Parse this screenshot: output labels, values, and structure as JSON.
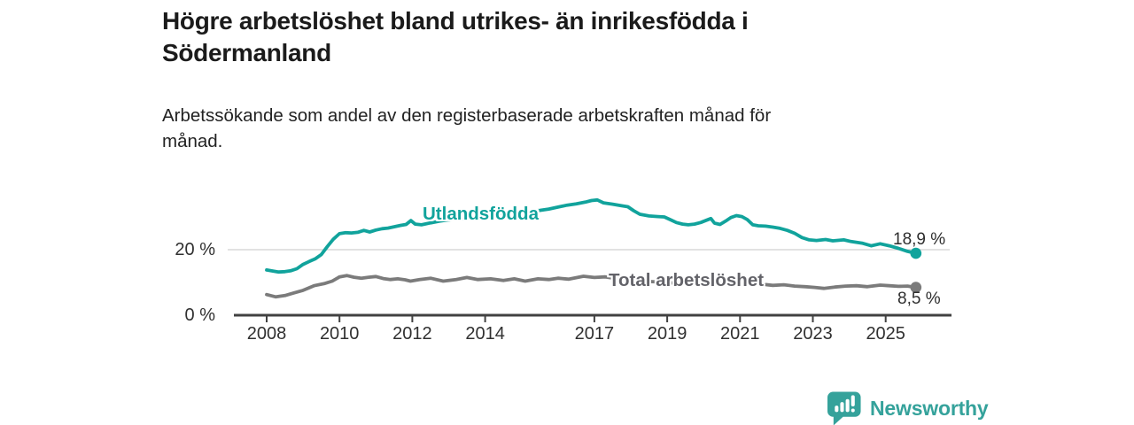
{
  "title": {
    "lines": [
      "Högre arbetslöshet bland utrikes- än inrikesfödda i",
      "Södermanland"
    ],
    "full": "Högre arbetslöshet bland utrikes- än inrikesfödda i Södermanland"
  },
  "subtitle": {
    "lines": [
      "Arbetssökande som andel av den registerbaserade arbetskraften månad för",
      "månad."
    ],
    "full": "Arbetssökande som andel av den registerbaserade arbetskraften månad för månad."
  },
  "branding": {
    "name": "Newsworthy",
    "logo_icon": "bar-chart-exclamation-bubble"
  },
  "colors": {
    "accent_teal": "#11a39c",
    "series_gray": "#7b7b7b",
    "label_gray": "#636369",
    "logo_teal": "#35a29b",
    "grid": "#d8d8d8",
    "axis": "#414141",
    "title_text": "#1b1b1b",
    "annotation_text": "#2e2e2e"
  },
  "chart_data": {
    "type": "line",
    "title": "Högre arbetslöshet bland utrikes- än inrikesfödda i Södermanland",
    "subtitle": "Arbetssökande som andel av den registerbaserade arbetskraften månad för månad.",
    "unit": "%",
    "x_axis": {
      "tick_years": [
        2008,
        2010,
        2012,
        2014,
        2017,
        2019,
        2021,
        2023,
        2025
      ],
      "range": [
        2008,
        2025.83
      ]
    },
    "y_axis": {
      "ticks": [
        {
          "value": 20,
          "label": "20 %"
        },
        {
          "value": 0,
          "label": "0 %"
        }
      ],
      "gridlines": [
        20
      ],
      "range": [
        0,
        38
      ]
    },
    "legend_position": "inline-labels",
    "series": [
      {
        "name": "Utlandsfödda",
        "color": "#11a39c",
        "end_label": "18,9 %",
        "end_value": 18.9,
        "points": [
          [
            2008.0,
            13.8
          ],
          [
            2008.17,
            13.5
          ],
          [
            2008.33,
            13.2
          ],
          [
            2008.5,
            13.3
          ],
          [
            2008.67,
            13.6
          ],
          [
            2008.83,
            14.2
          ],
          [
            2009.0,
            15.5
          ],
          [
            2009.17,
            16.4
          ],
          [
            2009.33,
            17.2
          ],
          [
            2009.5,
            18.5
          ],
          [
            2009.67,
            21.0
          ],
          [
            2009.83,
            23.2
          ],
          [
            2010.0,
            24.9
          ],
          [
            2010.17,
            25.2
          ],
          [
            2010.33,
            25.1
          ],
          [
            2010.5,
            25.3
          ],
          [
            2010.67,
            25.9
          ],
          [
            2010.83,
            25.4
          ],
          [
            2011.0,
            26.0
          ],
          [
            2011.17,
            26.4
          ],
          [
            2011.33,
            26.6
          ],
          [
            2011.5,
            27.0
          ],
          [
            2011.67,
            27.4
          ],
          [
            2011.83,
            27.7
          ],
          [
            2011.96,
            28.9
          ],
          [
            2012.08,
            27.8
          ],
          [
            2012.25,
            27.6
          ],
          [
            2012.5,
            28.2
          ],
          [
            2012.75,
            28.7
          ],
          [
            2013.0,
            29.1
          ],
          [
            2013.25,
            29.4
          ],
          [
            2013.5,
            29.7
          ],
          [
            2013.75,
            30.1
          ],
          [
            2014.0,
            30.5
          ],
          [
            2014.25,
            30.9
          ],
          [
            2014.5,
            31.1
          ],
          [
            2014.75,
            31.4
          ],
          [
            2015.0,
            31.7
          ],
          [
            2015.25,
            31.9
          ],
          [
            2015.5,
            32.0
          ],
          [
            2015.75,
            32.4
          ],
          [
            2016.0,
            33.0
          ],
          [
            2016.25,
            33.6
          ],
          [
            2016.5,
            34.0
          ],
          [
            2016.75,
            34.5
          ],
          [
            2016.92,
            35.0
          ],
          [
            2017.08,
            35.2
          ],
          [
            2017.25,
            34.3
          ],
          [
            2017.5,
            33.9
          ],
          [
            2017.75,
            33.4
          ],
          [
            2017.92,
            33.1
          ],
          [
            2018.08,
            31.9
          ],
          [
            2018.25,
            30.8
          ],
          [
            2018.5,
            30.3
          ],
          [
            2018.75,
            30.1
          ],
          [
            2018.92,
            30.0
          ],
          [
            2019.08,
            29.2
          ],
          [
            2019.25,
            28.3
          ],
          [
            2019.42,
            27.8
          ],
          [
            2019.58,
            27.6
          ],
          [
            2019.75,
            27.8
          ],
          [
            2019.92,
            28.3
          ],
          [
            2020.08,
            29.0
          ],
          [
            2020.2,
            29.5
          ],
          [
            2020.3,
            28.1
          ],
          [
            2020.45,
            27.7
          ],
          [
            2020.6,
            28.7
          ],
          [
            2020.75,
            29.8
          ],
          [
            2020.9,
            30.4
          ],
          [
            2021.05,
            30.1
          ],
          [
            2021.2,
            29.2
          ],
          [
            2021.35,
            27.6
          ],
          [
            2021.5,
            27.3
          ],
          [
            2021.7,
            27.2
          ],
          [
            2021.9,
            26.9
          ],
          [
            2022.1,
            26.5
          ],
          [
            2022.3,
            25.9
          ],
          [
            2022.5,
            25.0
          ],
          [
            2022.7,
            23.7
          ],
          [
            2022.9,
            23.0
          ],
          [
            2023.1,
            22.8
          ],
          [
            2023.35,
            23.1
          ],
          [
            2023.55,
            22.7
          ],
          [
            2023.85,
            23.0
          ],
          [
            2024.05,
            22.5
          ],
          [
            2024.35,
            22.0
          ],
          [
            2024.6,
            21.2
          ],
          [
            2024.85,
            21.8
          ],
          [
            2025.1,
            21.2
          ],
          [
            2025.35,
            20.4
          ],
          [
            2025.6,
            19.5
          ],
          [
            2025.83,
            18.9
          ]
        ]
      },
      {
        "name": "Total arbetslöshet",
        "color": "#7b7b7b",
        "end_label": "8,5 %",
        "end_value": 8.5,
        "points": [
          [
            2008.0,
            6.3
          ],
          [
            2008.25,
            5.6
          ],
          [
            2008.5,
            6.0
          ],
          [
            2008.75,
            6.8
          ],
          [
            2009.0,
            7.6
          ],
          [
            2009.3,
            9.0
          ],
          [
            2009.6,
            9.7
          ],
          [
            2009.8,
            10.4
          ],
          [
            2010.0,
            11.7
          ],
          [
            2010.2,
            12.1
          ],
          [
            2010.4,
            11.6
          ],
          [
            2010.6,
            11.3
          ],
          [
            2010.8,
            11.6
          ],
          [
            2011.0,
            11.8
          ],
          [
            2011.2,
            11.2
          ],
          [
            2011.4,
            10.9
          ],
          [
            2011.6,
            11.1
          ],
          [
            2011.8,
            10.8
          ],
          [
            2011.95,
            10.4
          ],
          [
            2012.2,
            10.9
          ],
          [
            2012.5,
            11.3
          ],
          [
            2012.85,
            10.4
          ],
          [
            2013.2,
            10.9
          ],
          [
            2013.5,
            11.5
          ],
          [
            2013.8,
            10.9
          ],
          [
            2014.15,
            11.1
          ],
          [
            2014.5,
            10.6
          ],
          [
            2014.8,
            11.1
          ],
          [
            2015.1,
            10.4
          ],
          [
            2015.45,
            11.1
          ],
          [
            2015.75,
            10.9
          ],
          [
            2016.0,
            11.3
          ],
          [
            2016.3,
            11.0
          ],
          [
            2016.7,
            11.9
          ],
          [
            2017.0,
            11.5
          ],
          [
            2017.3,
            11.7
          ],
          [
            2017.6,
            11.2
          ],
          [
            2017.9,
            10.9
          ],
          [
            2018.2,
            10.6
          ],
          [
            2018.5,
            10.3
          ],
          [
            2018.8,
            10.1
          ],
          [
            2019.1,
            9.9
          ],
          [
            2019.4,
            9.7
          ],
          [
            2019.7,
            9.8
          ],
          [
            2020.0,
            10.1
          ],
          [
            2020.3,
            10.6
          ],
          [
            2020.6,
            10.8
          ],
          [
            2020.9,
            10.5
          ],
          [
            2021.2,
            10.1
          ],
          [
            2021.5,
            9.6
          ],
          [
            2021.9,
            9.1
          ],
          [
            2022.2,
            9.3
          ],
          [
            2022.5,
            8.9
          ],
          [
            2022.8,
            8.7
          ],
          [
            2023.05,
            8.5
          ],
          [
            2023.3,
            8.2
          ],
          [
            2023.6,
            8.6
          ],
          [
            2023.9,
            8.9
          ],
          [
            2024.2,
            9.0
          ],
          [
            2024.5,
            8.7
          ],
          [
            2024.85,
            9.2
          ],
          [
            2025.1,
            9.0
          ],
          [
            2025.35,
            8.8
          ],
          [
            2025.6,
            8.9
          ],
          [
            2025.83,
            8.5
          ]
        ]
      }
    ]
  }
}
